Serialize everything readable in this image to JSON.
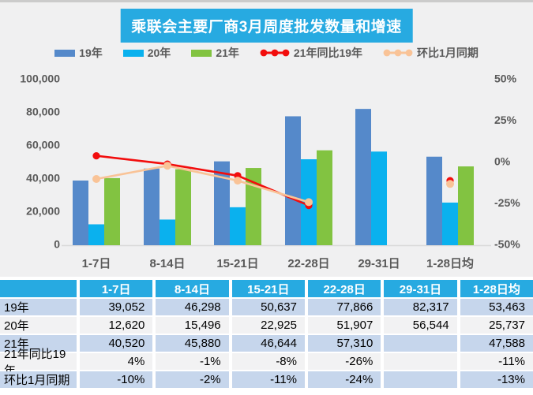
{
  "chart_data": {
    "type": "bar",
    "title": "乘联会主要厂商3月周度批发数量和增速",
    "categories": [
      "1-7日",
      "8-14日",
      "15-21日",
      "22-28日",
      "29-31日",
      "1-28日均"
    ],
    "series": [
      {
        "name": "19年",
        "type": "bar",
        "color": "#5589CA",
        "values": [
          39052,
          46298,
          50637,
          77866,
          82317,
          53463
        ]
      },
      {
        "name": "20年",
        "type": "bar",
        "color": "#0AB1EE",
        "values": [
          12620,
          15496,
          22925,
          51907,
          56544,
          25737
        ]
      },
      {
        "name": "21年",
        "type": "bar",
        "color": "#82C341",
        "values": [
          40520,
          45880,
          46644,
          57310,
          null,
          47588
        ]
      },
      {
        "name": "21年同比19年",
        "type": "line",
        "axis": "right",
        "unit": "%",
        "color": "#F20D0D",
        "values": [
          4,
          -1,
          -8,
          -26,
          null,
          -11
        ]
      },
      {
        "name": "环比1月同期",
        "type": "line",
        "axis": "right",
        "unit": "%",
        "color": "#F9C397",
        "values": [
          -10,
          -2,
          -11,
          -24,
          null,
          -13
        ]
      }
    ],
    "left_axis": {
      "min": 0,
      "max": 100000,
      "ticks": [
        "100,000",
        "80,000",
        "60,000",
        "40,000",
        "20,000",
        "0"
      ]
    },
    "right_axis": {
      "min": -50,
      "max": 50,
      "ticks": [
        "50%",
        "25%",
        "0%",
        "-25%",
        "-50%"
      ]
    },
    "grid": false,
    "legend_position": "top"
  },
  "legend": {
    "items": [
      {
        "key": "bars-19",
        "label": "19年",
        "type": "swatch",
        "color": "#5589CA"
      },
      {
        "key": "bars-20",
        "label": "20年",
        "type": "swatch",
        "color": "#0AB1EE"
      },
      {
        "key": "bars-21",
        "label": "21年",
        "type": "swatch",
        "color": "#82C341"
      },
      {
        "key": "yoy-line",
        "label": "21年同比19年",
        "type": "line",
        "color": "#F20D0D"
      },
      {
        "key": "mom-line",
        "label": "环比1月同期",
        "type": "line",
        "color": "#F9C397"
      }
    ]
  },
  "table": {
    "columns": [
      "",
      "1-7日",
      "8-14日",
      "15-21日",
      "22-28日",
      "29-31日",
      "1-28日均"
    ],
    "rows": [
      {
        "label": "19年",
        "cells": [
          "39,052",
          "46,298",
          "50,637",
          "77,866",
          "82,317",
          "53,463"
        ]
      },
      {
        "label": "20年",
        "cells": [
          "12,620",
          "15,496",
          "22,925",
          "51,907",
          "56,544",
          "25,737"
        ]
      },
      {
        "label": "21年",
        "cells": [
          "40,520",
          "45,880",
          "46,644",
          "57,310",
          "",
          "47,588"
        ]
      },
      {
        "label": "21年同比19年",
        "cells": [
          "4%",
          "-1%",
          "-8%",
          "-26%",
          "",
          "-11%"
        ]
      },
      {
        "label": "环比1月同期",
        "cells": [
          "-10%",
          "-2%",
          "-11%",
          "-24%",
          "",
          "-13%"
        ]
      }
    ]
  },
  "colors": {
    "accent_cyan": "#27AAE1",
    "chart_bg": "#F0F0F1",
    "bar_blue": "#5589CA",
    "bar_cyan": "#0AB1EE",
    "bar_green": "#82C341",
    "line_red": "#F20D0D",
    "line_peach": "#F9C397",
    "axis_text": "#595959",
    "row_blue": "#C6D6EC",
    "row_light": "#F2F2F3"
  }
}
